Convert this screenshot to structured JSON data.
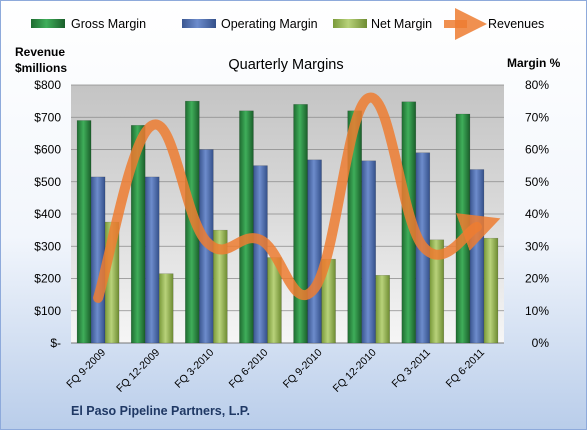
{
  "chart_data": {
    "type": "bar",
    "title": "Quarterly Margins",
    "footer": "El Paso Pipeline Partners, L.P.",
    "left_axis_title_lines": [
      "Revenue",
      "$millions"
    ],
    "right_axis_title": "Margin %",
    "categories": [
      "FQ 9-2009",
      "FQ 12-2009",
      "FQ 3-2010",
      "FQ 6-2010",
      "FQ 9-2010",
      "FQ 12-2010",
      "FQ 3-2011",
      "FQ 6-2011"
    ],
    "left_ticks": [
      "$-",
      "$100",
      "$200",
      "$300",
      "$400",
      "$500",
      "$600",
      "$700",
      "$800"
    ],
    "right_ticks": [
      "0%",
      "10%",
      "20%",
      "30%",
      "40%",
      "50%",
      "60%",
      "70%",
      "80%"
    ],
    "ylim_left": [
      0,
      800
    ],
    "ylim_right": [
      0,
      80
    ],
    "legend_position": "top",
    "grid": true,
    "series": [
      {
        "name": "Gross Margin",
        "axis": "right",
        "type": "bar",
        "color": "#2e8b46",
        "values": [
          69,
          67.5,
          75,
          72,
          74,
          72,
          74.8,
          71
        ]
      },
      {
        "name": "Operating Margin",
        "axis": "right",
        "type": "bar",
        "color": "#4f6fb0",
        "values": [
          51.5,
          51.5,
          60,
          55,
          56.8,
          56.5,
          59,
          53.8
        ]
      },
      {
        "name": "Net Margin",
        "axis": "right",
        "type": "bar",
        "color": "#9bbb59",
        "values": [
          37.5,
          21.5,
          35,
          26.5,
          26,
          21,
          32,
          32.5
        ]
      },
      {
        "name": "Revenues",
        "axis": "left",
        "type": "line",
        "color": "#ed7d31",
        "values": [
          140,
          675,
          315,
          320,
          170,
          760,
          300,
          360
        ]
      }
    ]
  }
}
